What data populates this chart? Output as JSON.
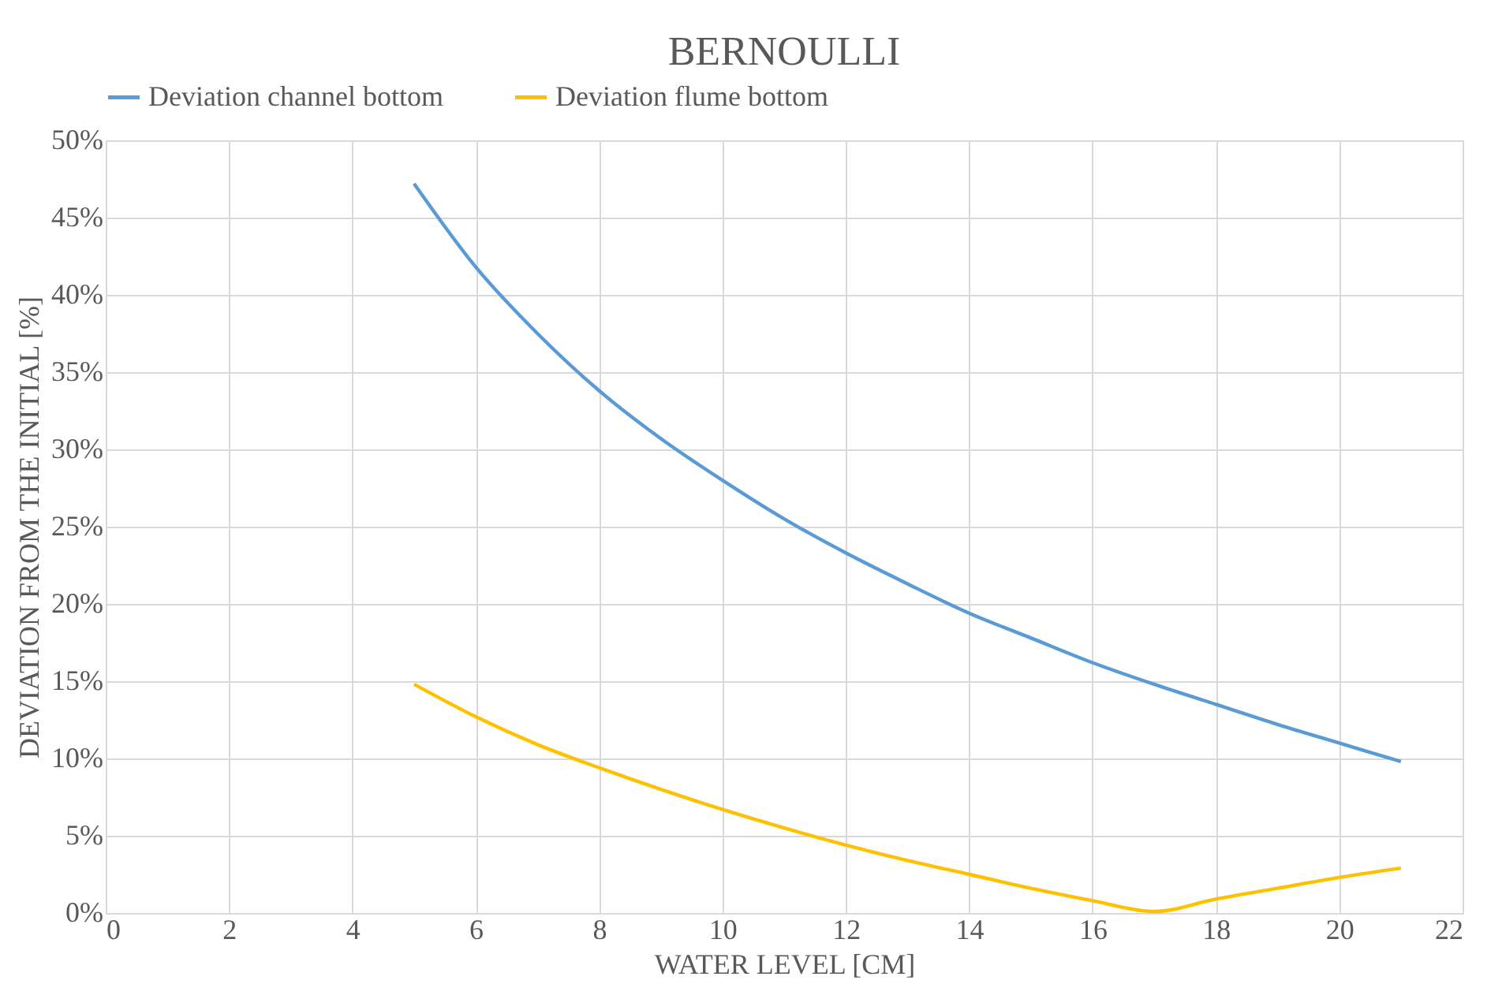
{
  "chart_data": {
    "type": "line",
    "title": "BERNOULLI",
    "xlabel": "WATER LEVEL [CM]",
    "ylabel": "DEVIATION FROM THE INITIAL [%]",
    "x": [
      5,
      6,
      7,
      8,
      9,
      10,
      11,
      12,
      13,
      14,
      15,
      16,
      17,
      18,
      19,
      20,
      21
    ],
    "series": [
      {
        "name": "Deviation channel bottom",
        "color": "#5b9bd5",
        "values": [
          47.2,
          41.8,
          37.5,
          33.8,
          30.7,
          28.0,
          25.5,
          23.3,
          21.3,
          19.4,
          17.8,
          16.2,
          14.8,
          13.5,
          12.2,
          11.0,
          9.8
        ]
      },
      {
        "name": "Deviation flume bottom",
        "color": "#ffc000",
        "values": [
          14.8,
          12.7,
          10.9,
          9.4,
          8.0,
          6.7,
          5.5,
          4.4,
          3.4,
          2.5,
          1.6,
          0.8,
          0.1,
          0.9,
          1.6,
          2.3,
          2.9
        ]
      }
    ],
    "xlim": [
      0,
      22
    ],
    "xticks": [
      0,
      2,
      4,
      6,
      8,
      10,
      12,
      14,
      16,
      18,
      20,
      22
    ],
    "ylim": [
      0,
      50
    ],
    "yticks": [
      {
        "value": 0,
        "label": "0%"
      },
      {
        "value": 5,
        "label": "5%"
      },
      {
        "value": 10,
        "label": "10%"
      },
      {
        "value": 15,
        "label": "15%"
      },
      {
        "value": 20,
        "label": "20%"
      },
      {
        "value": 25,
        "label": "25%"
      },
      {
        "value": 30,
        "label": "30%"
      },
      {
        "value": 35,
        "label": "35%"
      },
      {
        "value": 40,
        "label": "40%"
      },
      {
        "value": 45,
        "label": "45%"
      },
      {
        "value": 50,
        "label": "50%"
      }
    ],
    "grid": true,
    "legend": "top",
    "marker": "none",
    "line_style": "solid"
  }
}
